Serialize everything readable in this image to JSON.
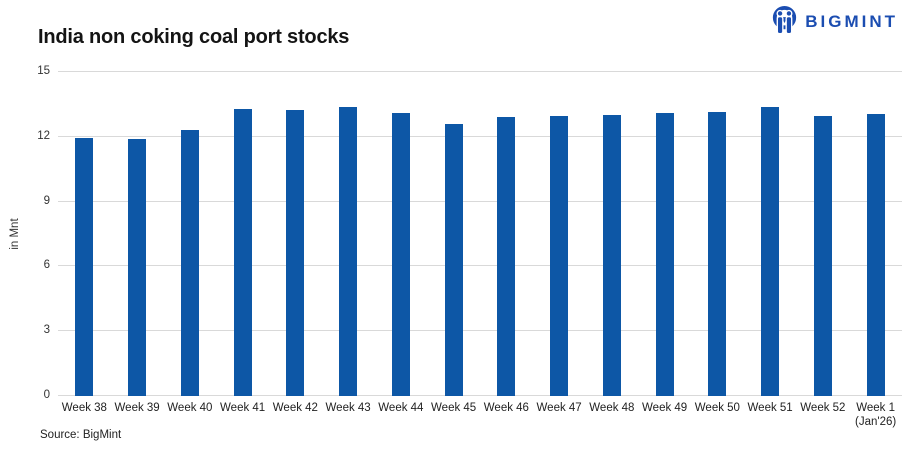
{
  "header": {
    "title": "India non coking coal port stocks",
    "logo_text": "BIGMINT"
  },
  "source": "Source: BigMint",
  "colors": {
    "bar": "#0d57a6",
    "gridline": "#d9d9d9",
    "logo_blue": "#1b4db1"
  },
  "chart_data": {
    "type": "bar",
    "title": "India non coking coal port stocks",
    "xlabel": "",
    "ylabel": "in Mnt",
    "ylim": [
      0,
      15
    ],
    "yticks": [
      0,
      3,
      6,
      9,
      12,
      15
    ],
    "grid": true,
    "legend": false,
    "categories": [
      "Week 38",
      "Week 39",
      "Week 40",
      "Week 41",
      "Week 42",
      "Week 43",
      "Week 44",
      "Week 45",
      "Week 46",
      "Week 47",
      "Week 48",
      "Week 49",
      "Week 50",
      "Week 51",
      "Week 52",
      "Week 1\n(Jan'26)"
    ],
    "values": [
      11.95,
      11.9,
      12.3,
      13.3,
      13.25,
      13.4,
      13.1,
      12.6,
      12.9,
      12.95,
      13.0,
      13.1,
      13.15,
      13.4,
      12.95,
      13.05
    ]
  }
}
